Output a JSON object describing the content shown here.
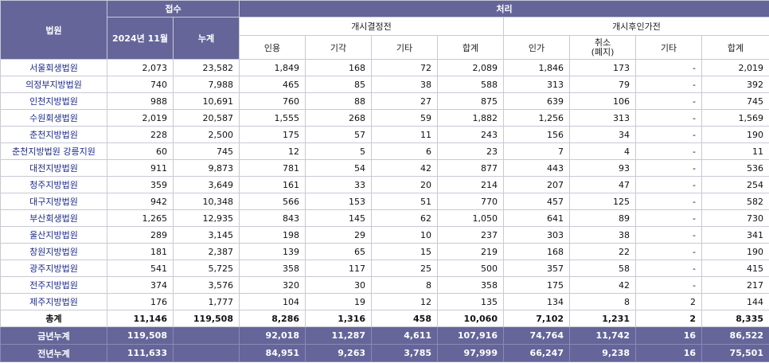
{
  "header": {
    "court": "법원",
    "received": "접수",
    "processed": "처리",
    "month": "2024년 11월",
    "cumulative": "누계",
    "before_decision": "개시결정전",
    "after_decision": "개시후인가전",
    "before_cols": [
      "인용",
      "기각",
      "기타",
      "합계"
    ],
    "after_cols": [
      "인가",
      "취소\n(폐지)",
      "기타",
      "합계"
    ]
  },
  "rows": [
    [
      "서울회생법원",
      "2,073",
      "23,582",
      "1,849",
      "168",
      "72",
      "2,089",
      "1,846",
      "173",
      "-",
      "2,019"
    ],
    [
      "의정부지방법원",
      "740",
      "7,988",
      "465",
      "85",
      "38",
      "588",
      "313",
      "79",
      "-",
      "392"
    ],
    [
      "인천지방법원",
      "988",
      "10,691",
      "760",
      "88",
      "27",
      "875",
      "639",
      "106",
      "-",
      "745"
    ],
    [
      "수원회생법원",
      "2,019",
      "20,587",
      "1,555",
      "268",
      "59",
      "1,882",
      "1,256",
      "313",
      "-",
      "1,569"
    ],
    [
      "춘천지방법원",
      "228",
      "2,500",
      "175",
      "57",
      "11",
      "243",
      "156",
      "34",
      "-",
      "190"
    ],
    [
      "춘천지방법원 강릉지원",
      "60",
      "745",
      "12",
      "5",
      "6",
      "23",
      "7",
      "4",
      "-",
      "11"
    ],
    [
      "대전지방법원",
      "911",
      "9,873",
      "781",
      "54",
      "42",
      "877",
      "443",
      "93",
      "-",
      "536"
    ],
    [
      "청주지방법원",
      "359",
      "3,649",
      "161",
      "33",
      "20",
      "214",
      "207",
      "47",
      "-",
      "254"
    ],
    [
      "대구지방법원",
      "942",
      "10,348",
      "566",
      "153",
      "51",
      "770",
      "457",
      "125",
      "-",
      "582"
    ],
    [
      "부산회생법원",
      "1,265",
      "12,935",
      "843",
      "145",
      "62",
      "1,050",
      "641",
      "89",
      "-",
      "730"
    ],
    [
      "울산지방법원",
      "289",
      "3,145",
      "198",
      "29",
      "10",
      "237",
      "303",
      "38",
      "-",
      "341"
    ],
    [
      "창원지방법원",
      "181",
      "2,387",
      "139",
      "65",
      "15",
      "219",
      "168",
      "22",
      "-",
      "190"
    ],
    [
      "광주지방법원",
      "541",
      "5,725",
      "358",
      "117",
      "25",
      "500",
      "357",
      "58",
      "-",
      "415"
    ],
    [
      "전주지방법원",
      "374",
      "3,576",
      "320",
      "30",
      "8",
      "358",
      "175",
      "42",
      "-",
      "217"
    ],
    [
      "제주지방법원",
      "176",
      "1,777",
      "104",
      "19",
      "12",
      "135",
      "134",
      "8",
      "2",
      "144"
    ]
  ],
  "total": [
    "총계",
    "11,146",
    "119,508",
    "8,286",
    "1,316",
    "458",
    "10,060",
    "7,102",
    "1,231",
    "2",
    "8,335"
  ],
  "cum_rows": [
    [
      "금년누계",
      "119,508",
      "",
      "92,018",
      "11,287",
      "4,611",
      "107,916",
      "74,764",
      "11,742",
      "16",
      "86,522"
    ],
    [
      "전년누계",
      "111,633",
      "",
      "84,951",
      "9,263",
      "3,785",
      "97,999",
      "66,247",
      "9,238",
      "16",
      "75,501"
    ]
  ]
}
